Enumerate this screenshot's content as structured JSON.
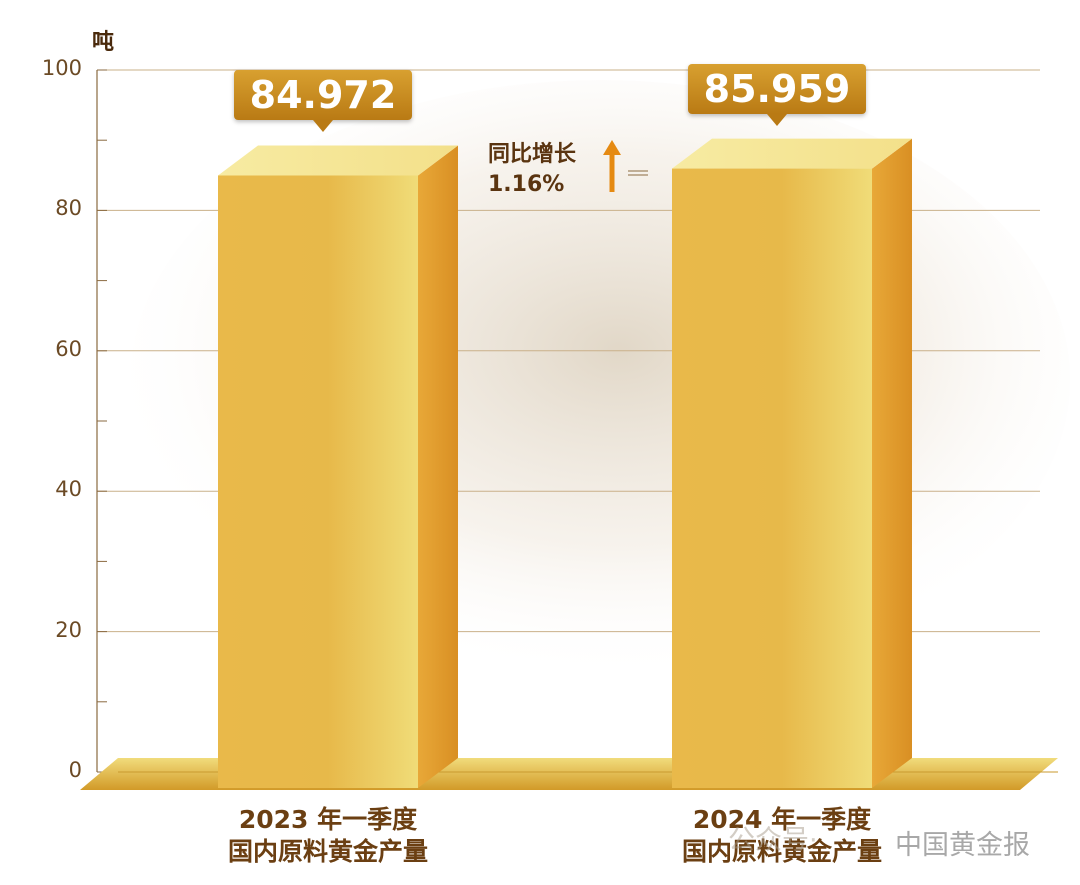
{
  "chart_data": {
    "type": "bar",
    "unit_label": "吨",
    "categories": [
      [
        "2023 年一季度",
        "国内原料黄金产量"
      ],
      [
        "2024 年一季度",
        "国内原料黄金产量"
      ]
    ],
    "values": [
      84.972,
      85.959
    ],
    "value_labels": [
      "84.972",
      "85.959"
    ],
    "ylim": [
      0,
      100
    ],
    "yticks": [
      0,
      20,
      40,
      60,
      80,
      100
    ],
    "grid": true,
    "annotation": {
      "lines": [
        "同比增长",
        "1.16%"
      ],
      "arrow": "up-arrow-icon"
    },
    "colors": {
      "bar_front": "#e7b94a",
      "bar_side": "#d98f23",
      "bar_top": "#f3e08a",
      "label_box": "#c98c1e",
      "axis": "#8a6a40",
      "grid": "#c9b08a",
      "text": "#6b3f12"
    }
  },
  "watermark": {
    "prefix": "公众号·",
    "text": "中国黄金报"
  }
}
